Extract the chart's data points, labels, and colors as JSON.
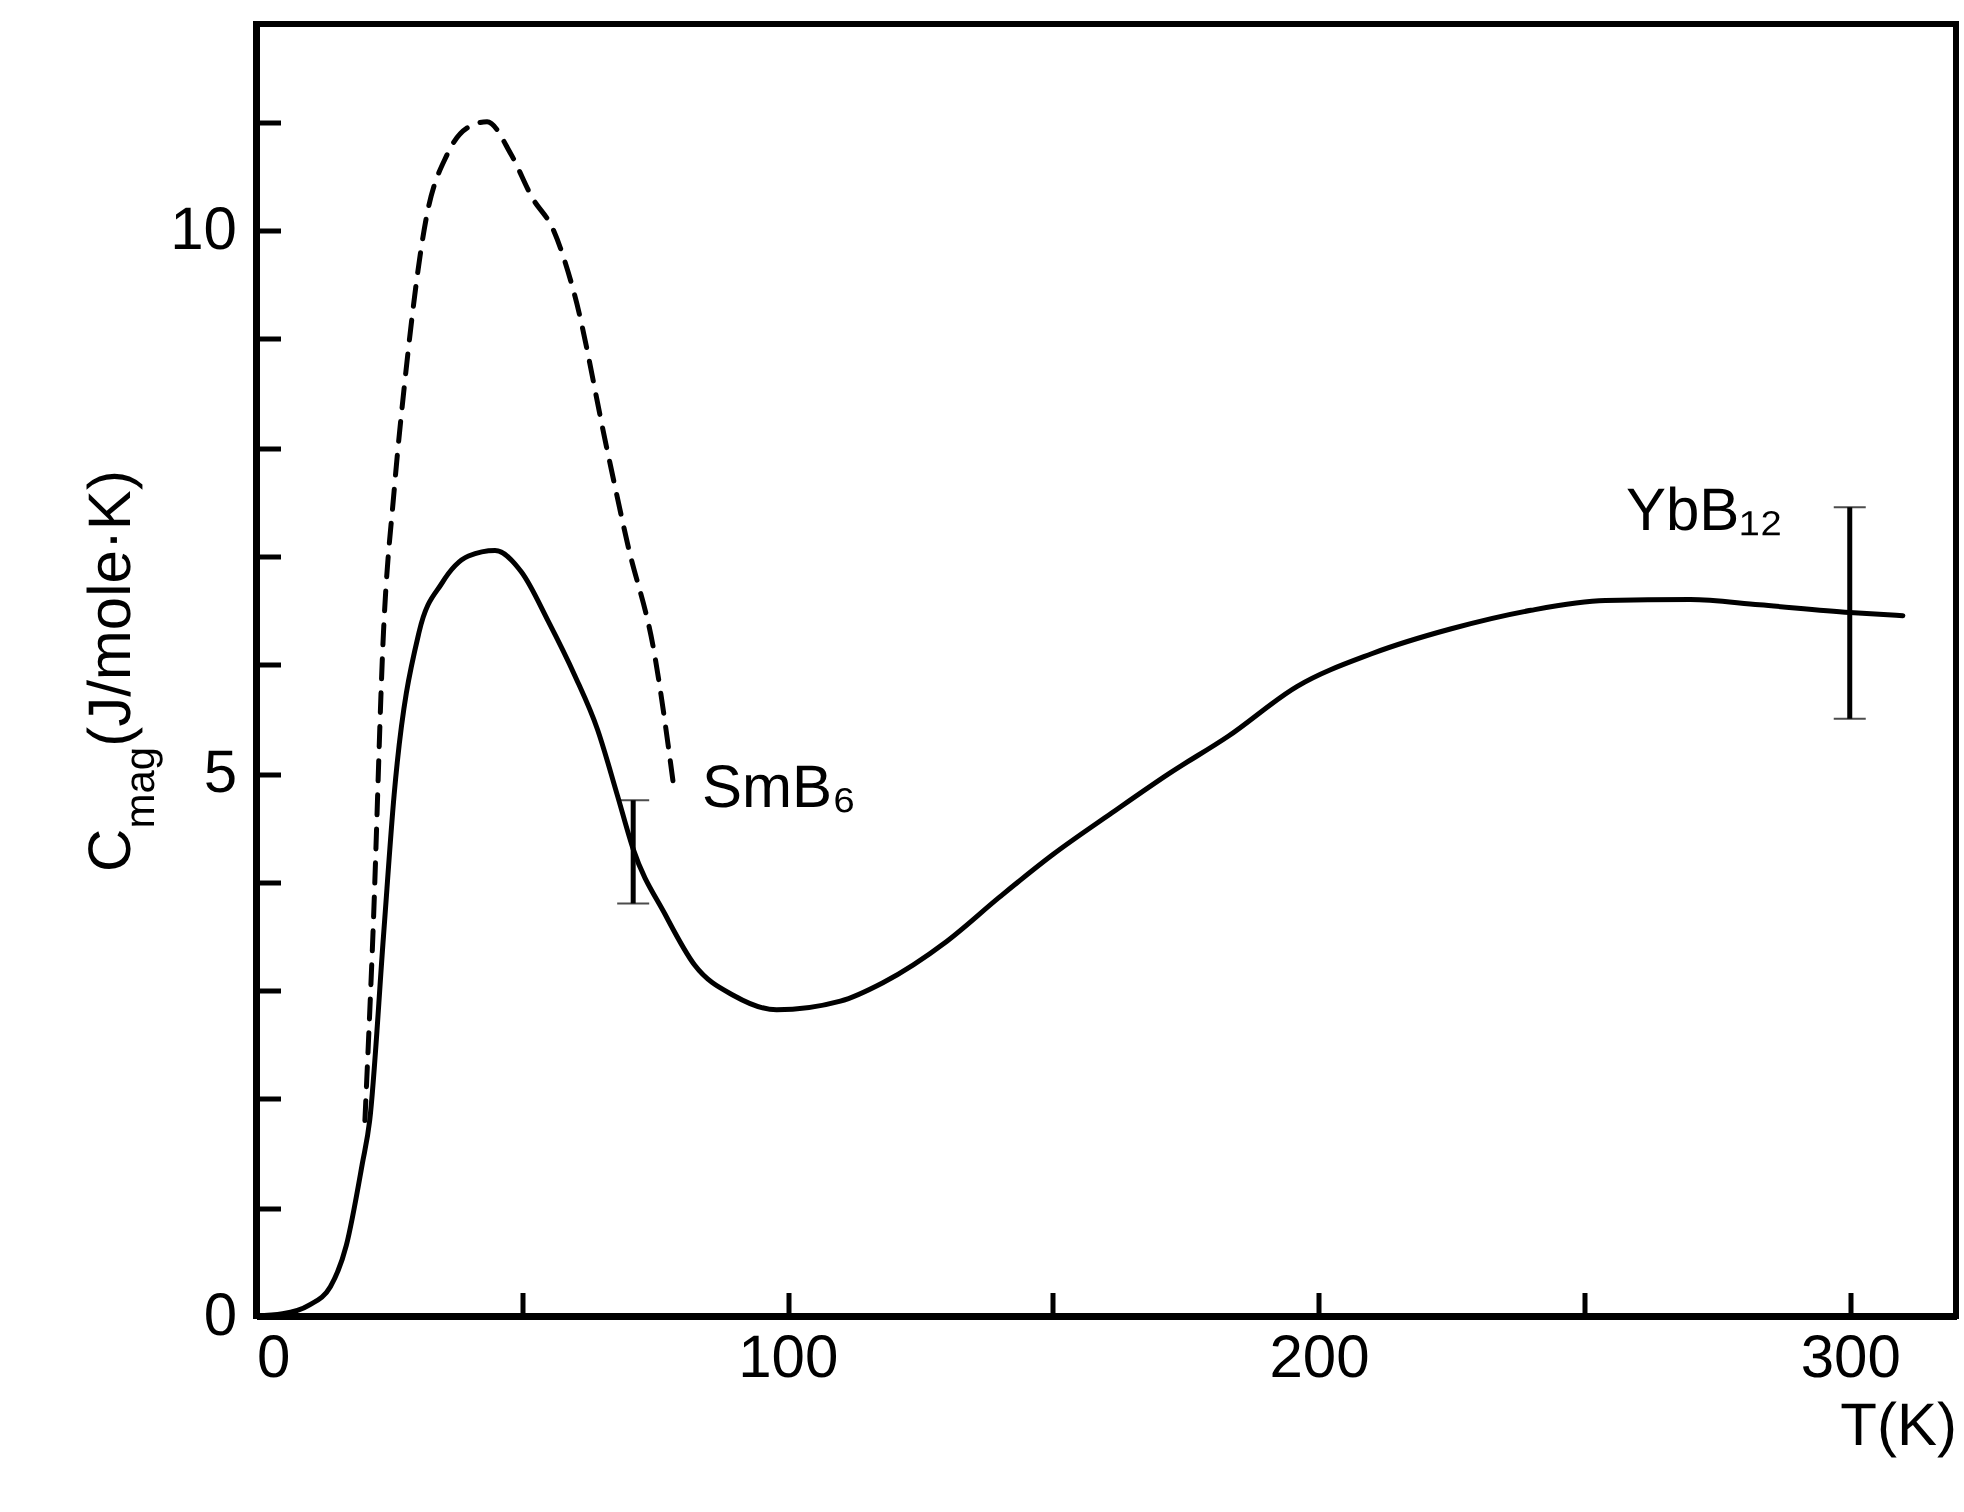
{
  "chart_data": {
    "type": "line",
    "xlabel": "T(K)",
    "ylabel": "C$_{mag}$(J/mole·K)",
    "xlim": [
      0,
      320
    ],
    "ylim": [
      0,
      11.9
    ],
    "xticks": [
      0,
      {
        "value": 50,
        "label": null
      },
      100,
      {
        "value": 150,
        "label": null
      },
      200,
      {
        "value": 250,
        "label": null
      },
      300
    ],
    "yticks": [
      0,
      {
        "value": 1,
        "label": null
      },
      {
        "value": 2,
        "label": null
      },
      {
        "value": 3,
        "label": null
      },
      {
        "value": 4,
        "label": null
      },
      5,
      {
        "value": 6,
        "label": null
      },
      {
        "value": 7,
        "label": null
      },
      {
        "value": 8,
        "label": null
      },
      {
        "value": 9,
        "label": null
      },
      10,
      {
        "value": 11,
        "label": null
      }
    ],
    "grid": false,
    "series": [
      {
        "name": "SmB₆",
        "color": "#000000",
        "line_style": "dashed",
        "x": [
          20.5,
          22,
          24,
          26,
          28,
          32,
          36,
          40,
          43.5,
          48,
          52,
          56,
          60,
          66,
          70,
          75,
          78.7
        ],
        "values": [
          1.8,
          3.5,
          6.3,
          7.6,
          8.6,
          10.1,
          10.7,
          10.95,
          11.0,
          10.7,
          10.3,
          10.0,
          9.4,
          8.0,
          7.1,
          6.1,
          4.85
        ]
      },
      {
        "name": "YbB₁₂",
        "color": "#000000",
        "line_style": "solid",
        "x": [
          0,
          5,
          10,
          14,
          17,
          20,
          21.4,
          24,
          26,
          30.7,
          35,
          40,
          45,
          50,
          55,
          60,
          64.3,
          68,
          71,
          77,
          82.6,
          90,
          98,
          110,
          118,
          130,
          140,
          150,
          161,
          172,
          183,
          196,
          210,
          225,
          240,
          254,
          270,
          283,
          300,
          310
        ],
        "values": [
          0,
          0.02,
          0.1,
          0.27,
          0.65,
          1.4,
          1.8,
          3.5,
          4.8,
          6.3,
          6.75,
          7.0,
          7.05,
          6.85,
          6.4,
          5.9,
          5.4,
          4.8,
          4.3,
          3.7,
          3.23,
          2.95,
          2.82,
          2.9,
          3.07,
          3.45,
          3.86,
          4.25,
          4.63,
          5.0,
          5.34,
          5.8,
          6.1,
          6.33,
          6.5,
          6.59,
          6.6,
          6.55,
          6.48,
          6.45
        ],
        "errors": [
          null,
          null,
          null,
          null,
          null,
          null,
          null,
          null,
          null,
          null,
          null,
          null,
          null,
          null,
          null,
          null,
          null,
          null,
          [
            3.8,
            4.75
          ],
          null,
          null,
          null,
          null,
          null,
          null,
          null,
          null,
          null,
          null,
          null,
          null,
          null,
          null,
          null,
          null,
          null,
          null,
          null,
          [
            5.5,
            7.45
          ],
          null
        ]
      }
    ]
  }
}
